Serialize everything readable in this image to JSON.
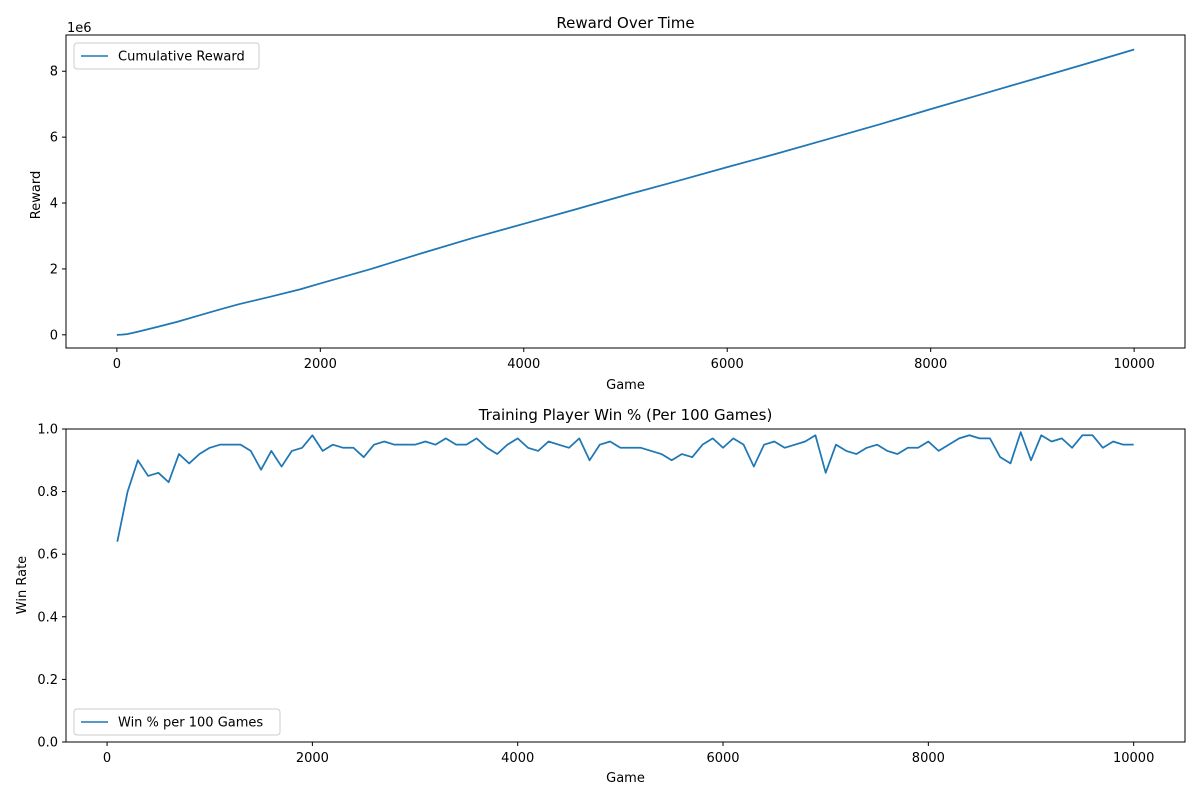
{
  "figure": {
    "background": "#ffffff",
    "line_color": "#1f77b4"
  },
  "chart_data": [
    {
      "type": "line",
      "title": "Reward Over Time",
      "xlabel": "Game",
      "ylabel": "Reward",
      "y_offset_label": "1e6",
      "xlim": [
        -500,
        10500
      ],
      "ylim": [
        -400000,
        9100000
      ],
      "x_ticks": [
        0,
        2000,
        4000,
        6000,
        8000,
        10000
      ],
      "x_tick_labels": [
        "0",
        "2000",
        "4000",
        "6000",
        "8000",
        "10000"
      ],
      "y_ticks": [
        0,
        2000000,
        4000000,
        6000000,
        8000000
      ],
      "y_tick_labels": [
        "0",
        "2",
        "4",
        "6",
        "8"
      ],
      "grid": false,
      "legend_position": "upper-left",
      "series": [
        {
          "name": "Cumulative Reward",
          "color": "#1f77b4",
          "x": [
            0,
            50,
            100,
            200,
            400,
            600,
            800,
            1000,
            1200,
            1500,
            1800,
            2000,
            2500,
            3000,
            3500,
            4000,
            4500,
            5000,
            5500,
            6000,
            6500,
            7000,
            7500,
            8000,
            8500,
            9000,
            9500,
            10000
          ],
          "y": [
            0,
            5000,
            20000,
            90000,
            240000,
            400000,
            580000,
            760000,
            930000,
            1150000,
            1380000,
            1560000,
            2000000,
            2480000,
            2940000,
            3370000,
            3800000,
            4240000,
            4660000,
            5090000,
            5510000,
            5950000,
            6390000,
            6850000,
            7300000,
            7750000,
            8200000,
            8660000
          ]
        }
      ]
    },
    {
      "type": "line",
      "title": "Training Player Win % (Per 100 Games)",
      "xlabel": "Game",
      "ylabel": "Win Rate",
      "xlim": [
        -400,
        10500
      ],
      "ylim": [
        0.0,
        1.0
      ],
      "x_ticks": [
        0,
        2000,
        4000,
        6000,
        8000,
        10000
      ],
      "x_tick_labels": [
        "0",
        "2000",
        "4000",
        "6000",
        "8000",
        "10000"
      ],
      "y_ticks": [
        0.0,
        0.2,
        0.4,
        0.6,
        0.8,
        1.0
      ],
      "y_tick_labels": [
        "0.0",
        "0.2",
        "0.4",
        "0.6",
        "0.8",
        "1.0"
      ],
      "grid": false,
      "legend_position": "lower-left",
      "series": [
        {
          "name": "Win % per 100 Games",
          "color": "#1f77b4",
          "x": [
            100,
            200,
            300,
            400,
            500,
            600,
            700,
            800,
            900,
            1000,
            1100,
            1200,
            1300,
            1400,
            1500,
            1600,
            1700,
            1800,
            1900,
            2000,
            2100,
            2200,
            2300,
            2400,
            2500,
            2600,
            2700,
            2800,
            2900,
            3000,
            3100,
            3200,
            3300,
            3400,
            3500,
            3600,
            3700,
            3800,
            3900,
            4000,
            4100,
            4200,
            4300,
            4400,
            4500,
            4600,
            4700,
            4800,
            4900,
            5000,
            5100,
            5200,
            5300,
            5400,
            5500,
            5600,
            5700,
            5800,
            5900,
            6000,
            6100,
            6200,
            6300,
            6400,
            6500,
            6600,
            6700,
            6800,
            6900,
            7000,
            7100,
            7200,
            7300,
            7400,
            7500,
            7600,
            7700,
            7800,
            7900,
            8000,
            8100,
            8200,
            8300,
            8400,
            8500,
            8600,
            8700,
            8800,
            8900,
            9000,
            9100,
            9200,
            9300,
            9400,
            9500,
            9600,
            9700,
            9800,
            9900,
            10000
          ],
          "y": [
            0.64,
            0.8,
            0.9,
            0.85,
            0.86,
            0.83,
            0.92,
            0.89,
            0.92,
            0.94,
            0.95,
            0.95,
            0.95,
            0.93,
            0.87,
            0.93,
            0.88,
            0.93,
            0.94,
            0.98,
            0.93,
            0.95,
            0.94,
            0.94,
            0.91,
            0.95,
            0.96,
            0.95,
            0.95,
            0.95,
            0.96,
            0.95,
            0.97,
            0.95,
            0.95,
            0.97,
            0.94,
            0.92,
            0.95,
            0.97,
            0.94,
            0.93,
            0.96,
            0.95,
            0.94,
            0.97,
            0.9,
            0.95,
            0.96,
            0.94,
            0.94,
            0.94,
            0.93,
            0.92,
            0.9,
            0.92,
            0.91,
            0.95,
            0.97,
            0.94,
            0.97,
            0.95,
            0.88,
            0.95,
            0.96,
            0.94,
            0.95,
            0.96,
            0.98,
            0.86,
            0.95,
            0.93,
            0.92,
            0.94,
            0.95,
            0.93,
            0.92,
            0.94,
            0.94,
            0.96,
            0.93,
            0.95,
            0.97,
            0.98,
            0.97,
            0.97,
            0.91,
            0.89,
            0.99,
            0.9,
            0.98,
            0.96,
            0.97,
            0.94,
            0.98,
            0.98,
            0.94,
            0.96,
            0.95,
            0.95
          ]
        }
      ]
    }
  ]
}
